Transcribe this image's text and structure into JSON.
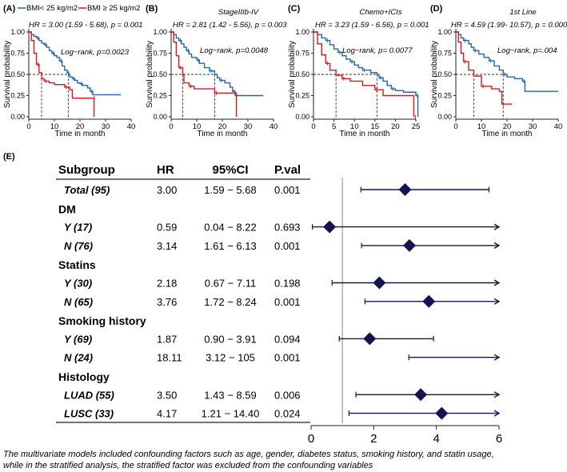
{
  "legend": {
    "low_label": "BMI< 25 kg/m2",
    "high_label": "BMI ≥ 25 kg/m2",
    "low_color": "#2166ac",
    "high_color": "#d7191c"
  },
  "km_common": {
    "ylabel": "Survival probability",
    "xlabel": "Time in month",
    "y_ticks": [
      "0.00",
      "0.25",
      "0.50",
      "0.75",
      "1.00"
    ]
  },
  "chart_data": [
    {
      "type": "line",
      "panel": "(A)",
      "title": "",
      "hr_text": "HR = 3.00 (1.59 - 5.68), p = 0.001",
      "logrank_text": "Log−rank, p=0.0023",
      "xlim": [
        0,
        40
      ],
      "ylim": [
        0,
        1
      ],
      "x_ticks": [
        0,
        10,
        20,
        30,
        40
      ],
      "medians": [
        5,
        15.5
      ],
      "series": [
        {
          "name": "BMI< 25 kg/m2",
          "steps": [
            [
              0,
              1
            ],
            [
              1,
              0.97
            ],
            [
              2,
              0.95
            ],
            [
              3,
              0.93
            ],
            [
              4,
              0.9
            ],
            [
              5,
              0.87
            ],
            [
              6,
              0.85
            ],
            [
              7,
              0.82
            ],
            [
              8,
              0.78
            ],
            [
              9,
              0.75
            ],
            [
              10,
              0.72
            ],
            [
              11,
              0.7
            ],
            [
              12,
              0.66
            ],
            [
              13,
              0.6
            ],
            [
              14,
              0.55
            ],
            [
              15,
              0.52
            ],
            [
              15.5,
              0.5
            ],
            [
              16,
              0.47
            ],
            [
              17,
              0.45
            ],
            [
              18,
              0.43
            ],
            [
              19,
              0.4
            ],
            [
              20,
              0.39
            ],
            [
              21,
              0.37
            ],
            [
              23,
              0.34
            ],
            [
              24,
              0.3
            ],
            [
              25,
              0.26
            ],
            [
              36,
              0.26
            ]
          ]
        },
        {
          "name": "BMI ≥ 25 kg/m2",
          "steps": [
            [
              0,
              1
            ],
            [
              1,
              0.9
            ],
            [
              2,
              0.75
            ],
            [
              3,
              0.62
            ],
            [
              4,
              0.52
            ],
            [
              5,
              0.45
            ],
            [
              6,
              0.42
            ],
            [
              8,
              0.4
            ],
            [
              10,
              0.38
            ],
            [
              14,
              0.35
            ],
            [
              16,
              0.32
            ],
            [
              17,
              0.22
            ],
            [
              25,
              0.22
            ],
            [
              25.5,
              0
            ]
          ]
        }
      ]
    },
    {
      "type": "line",
      "panel": "(B)",
      "title": "StageIIIb-IV",
      "hr_text": "HR = 2.81 (1.42 - 5.56), p = 0.003",
      "logrank_text": "Log−rank, p=0.0048",
      "xlim": [
        0,
        40
      ],
      "ylim": [
        0,
        1
      ],
      "x_ticks": [
        0,
        10,
        20,
        30,
        40
      ],
      "medians": [
        4.5,
        17
      ],
      "series": [
        {
          "name": "BMI< 25 kg/m2",
          "steps": [
            [
              0,
              1
            ],
            [
              1,
              0.97
            ],
            [
              2,
              0.93
            ],
            [
              3,
              0.9
            ],
            [
              4,
              0.86
            ],
            [
              5,
              0.82
            ],
            [
              6,
              0.78
            ],
            [
              7,
              0.74
            ],
            [
              8,
              0.7
            ],
            [
              10,
              0.67
            ],
            [
              11,
              0.63
            ],
            [
              13,
              0.58
            ],
            [
              15,
              0.54
            ],
            [
              17,
              0.5
            ],
            [
              18,
              0.46
            ],
            [
              19,
              0.43
            ],
            [
              21,
              0.4
            ],
            [
              23,
              0.35
            ],
            [
              24,
              0.3
            ],
            [
              25,
              0.25
            ],
            [
              36,
              0.25
            ]
          ]
        },
        {
          "name": "BMI ≥ 25 kg/m2",
          "steps": [
            [
              0,
              1
            ],
            [
              1,
              0.88
            ],
            [
              2,
              0.72
            ],
            [
              3,
              0.58
            ],
            [
              4.5,
              0.5
            ],
            [
              5,
              0.4
            ],
            [
              7,
              0.36
            ],
            [
              9,
              0.33
            ],
            [
              16,
              0.33
            ],
            [
              17,
              0.28
            ],
            [
              25,
              0.28
            ],
            [
              25.5,
              0
            ]
          ]
        }
      ]
    },
    {
      "type": "line",
      "panel": "(C)",
      "title": "Chemo+ICIs",
      "hr_text": "HR = 3.23 (1.59 - 6.56), p = 0.001",
      "logrank_text": "Log−rank, p= 0.0077",
      "xlim": [
        0,
        25
      ],
      "ylim": [
        0,
        1
      ],
      "x_ticks": [
        0,
        5,
        10,
        15,
        20,
        25
      ],
      "medians": [
        5.5,
        15.5
      ],
      "series": [
        {
          "name": "BMI< 25 kg/m2",
          "steps": [
            [
              0,
              1
            ],
            [
              1,
              0.97
            ],
            [
              2,
              0.93
            ],
            [
              3,
              0.9
            ],
            [
              4,
              0.85
            ],
            [
              5,
              0.8
            ],
            [
              6,
              0.76
            ],
            [
              7,
              0.72
            ],
            [
              8,
              0.68
            ],
            [
              9,
              0.65
            ],
            [
              10,
              0.61
            ],
            [
              11,
              0.58
            ],
            [
              12,
              0.55
            ],
            [
              14,
              0.52
            ],
            [
              15.5,
              0.5
            ],
            [
              16,
              0.46
            ],
            [
              17,
              0.42
            ],
            [
              18,
              0.37
            ],
            [
              19,
              0.33
            ],
            [
              20,
              0.31
            ],
            [
              22,
              0.29
            ],
            [
              25,
              0.25
            ],
            [
              25.5,
              0
            ]
          ]
        },
        {
          "name": "BMI ≥ 25 kg/m2",
          "steps": [
            [
              0,
              1
            ],
            [
              1,
              0.86
            ],
            [
              2,
              0.73
            ],
            [
              3,
              0.63
            ],
            [
              4,
              0.55
            ],
            [
              5.5,
              0.49
            ],
            [
              7,
              0.45
            ],
            [
              9,
              0.42
            ],
            [
              12,
              0.37
            ],
            [
              15,
              0.32
            ],
            [
              17,
              0.25
            ],
            [
              24,
              0.25
            ],
            [
              24.5,
              0
            ]
          ]
        }
      ]
    },
    {
      "type": "line",
      "panel": "(D)",
      "title": "1st Line",
      "hr_text": "HR = 4.59 (1.99- 10.57), p = 0.0003",
      "logrank_text": "Log−rank, p=.004",
      "xlim": [
        0,
        40
      ],
      "ylim": [
        0,
        1
      ],
      "x_ticks": [
        0,
        10,
        20,
        30,
        40
      ],
      "medians": [
        7,
        18.5
      ],
      "series": [
        {
          "name": "BMI< 25 kg/m2",
          "steps": [
            [
              0,
              1
            ],
            [
              1,
              0.97
            ],
            [
              2,
              0.93
            ],
            [
              3,
              0.9
            ],
            [
              5,
              0.86
            ],
            [
              6,
              0.82
            ],
            [
              7,
              0.78
            ],
            [
              9,
              0.74
            ],
            [
              11,
              0.7
            ],
            [
              13,
              0.66
            ],
            [
              15,
              0.6
            ],
            [
              17,
              0.55
            ],
            [
              18.5,
              0.5
            ],
            [
              20,
              0.47
            ],
            [
              23,
              0.45
            ],
            [
              26,
              0.42
            ],
            [
              27,
              0.3
            ],
            [
              40,
              0.3
            ]
          ]
        },
        {
          "name": "BMI ≥ 25 kg/m2",
          "steps": [
            [
              0,
              1
            ],
            [
              1,
              0.88
            ],
            [
              2,
              0.75
            ],
            [
              3,
              0.65
            ],
            [
              5,
              0.55
            ],
            [
              7,
              0.48
            ],
            [
              10,
              0.36
            ],
            [
              14,
              0.33
            ],
            [
              17,
              0.3
            ],
            [
              18,
              0.15
            ],
            [
              22,
              0.15
            ]
          ]
        }
      ]
    },
    {
      "type": "forest",
      "panel": "(E)",
      "headers": {
        "subgroup": "Subgroup",
        "hr": "HR",
        "ci": "95%CI",
        "pval": "P.val"
      },
      "xlim": [
        0,
        6
      ],
      "x_ticks": [
        0,
        2,
        4,
        6
      ],
      "reference_line": 1,
      "rows": [
        {
          "kind": "data",
          "label": "Total (95)",
          "hr": "3.00",
          "ci": "1.59 − 5.68",
          "p": "0.001",
          "est": 3.0,
          "lo": 1.59,
          "hi": 5.68
        },
        {
          "kind": "group",
          "label": "DM"
        },
        {
          "kind": "data",
          "label": "Y (17)",
          "hr": "0.59",
          "ci": "0.04 − 8.22",
          "p": "0.693",
          "est": 0.59,
          "lo": 0.04,
          "hi": 8.22
        },
        {
          "kind": "data",
          "label": "N (76)",
          "hr": "3.14",
          "ci": "1.61 − 6.13",
          "p": "0.001",
          "est": 3.14,
          "lo": 1.61,
          "hi": 6.13
        },
        {
          "kind": "group",
          "label": "Statins"
        },
        {
          "kind": "data",
          "label": "Y (30)",
          "hr": "2.18",
          "ci": "0.67 − 7.11",
          "p": "0.198",
          "est": 2.18,
          "lo": 0.67,
          "hi": 7.11
        },
        {
          "kind": "data",
          "label": "N (65)",
          "hr": "3.76",
          "ci": "1.72 − 8.24",
          "p": "0.001",
          "est": 3.76,
          "lo": 1.72,
          "hi": 8.24
        },
        {
          "kind": "group",
          "label": "Smoking history"
        },
        {
          "kind": "data",
          "label": "Y (69)",
          "hr": "1.87",
          "ci": "0.90 − 3.91",
          "p": "0.094",
          "est": 1.87,
          "lo": 0.9,
          "hi": 3.91
        },
        {
          "kind": "data",
          "label": "N (24)",
          "hr": "18.11",
          "ci": "3.12 − 105",
          "p": "0.001",
          "est": 18.11,
          "lo": 3.12,
          "hi": 105
        },
        {
          "kind": "group",
          "label": "Histology"
        },
        {
          "kind": "data",
          "label": "LUAD (55)",
          "hr": "3.50",
          "ci": "1.43 − 8.59",
          "p": "0.006",
          "est": 3.5,
          "lo": 1.43,
          "hi": 8.59
        },
        {
          "kind": "data",
          "label": "LUSC (33)",
          "hr": "4.17",
          "ci": "1.21 − 14.40",
          "p": "0.024",
          "est": 4.17,
          "lo": 1.21,
          "hi": 14.4
        }
      ],
      "footnote": [
        "The multivariate models included confounding factors such as age, gender, diabetes status, smoking history, and statin usage,",
        "while in the stratified analysis, the stratified factor was excluded from the confounding variables"
      ]
    }
  ]
}
